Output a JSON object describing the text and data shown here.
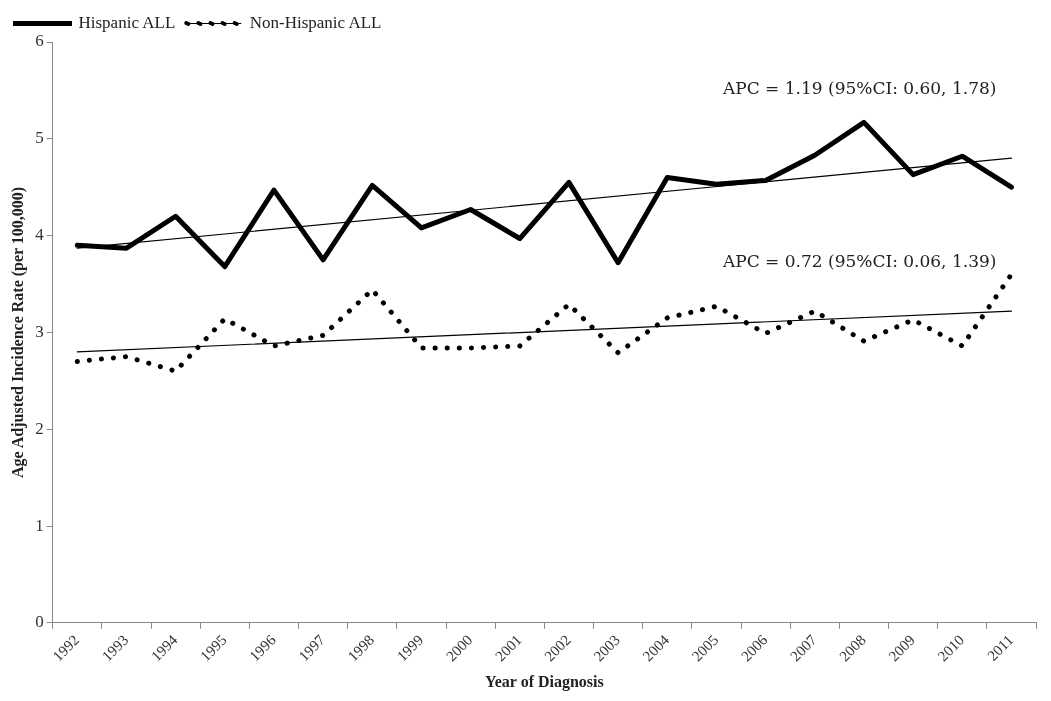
{
  "chart_data": {
    "type": "line",
    "xlabel": "Year of Diagnosis",
    "ylabel": "Age Adjusted Incidence Rate (per 100,000)",
    "categories": [
      "1992",
      "1993",
      "1994",
      "1995",
      "1996",
      "1997",
      "1998",
      "1999",
      "2000",
      "2001",
      "2002",
      "2003",
      "2004",
      "2005",
      "2006",
      "2007",
      "2008",
      "2009",
      "2010",
      "2011"
    ],
    "series": [
      {
        "name": "Hispanic ALL",
        "color": "#000000",
        "line_style": "solid",
        "values": [
          3.9,
          3.87,
          4.2,
          3.68,
          4.47,
          3.75,
          4.52,
          4.08,
          4.27,
          3.97,
          4.55,
          3.72,
          4.6,
          4.53,
          4.57,
          4.83,
          5.17,
          4.63,
          4.82,
          4.5
        ]
      },
      {
        "name": "Non-Hispanic ALL",
        "color": "#000000",
        "line_style": "dotted",
        "values": [
          2.7,
          2.75,
          2.6,
          3.14,
          2.86,
          2.97,
          3.44,
          2.84,
          2.84,
          2.86,
          3.29,
          2.79,
          3.15,
          3.27,
          2.99,
          3.22,
          2.91,
          3.13,
          2.86,
          3.6
        ]
      },
      {
        "type": "line",
        "color": "#000000",
        "line_style": "solid",
        "values": [
          3.87,
          null,
          null,
          null,
          null,
          null,
          null,
          null,
          null,
          null,
          null,
          null,
          null,
          null,
          null,
          null,
          null,
          null,
          null,
          4.8
        ]
      },
      {
        "type": "line",
        "color": "#000000",
        "line_style": "solid",
        "values": [
          2.8,
          null,
          null,
          null,
          null,
          null,
          null,
          null,
          null,
          null,
          null,
          null,
          null,
          null,
          null,
          null,
          null,
          null,
          null,
          3.22
        ]
      }
    ],
    "annotations": [
      "APC = 1.19 (95%CI: 0.60, 1.78)",
      "APC = 0.72 (95%CI: 0.06, 1.39)"
    ],
    "ylim": [
      0,
      6
    ],
    "yticks": [
      0,
      1,
      2,
      3,
      4,
      5,
      6
    ],
    "grid": false,
    "legend": "top left",
    "marker": "none"
  }
}
